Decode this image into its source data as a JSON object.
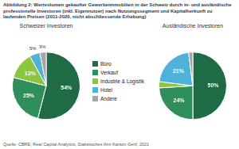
{
  "title": "Abbildung 2: Wertvolumen gekaufter Gewerbeimmobilien in der Schweiz durch in- und ausländische professionelle Investoren (inkl. Eigennutzer) nach Nutzungssegment und Kapitalherkunft zu laufenden Preisen (2011-2020, nicht abschliessende Erhebung)",
  "source": "Quelle: CBRE, Real Capital Analytics, Statistisches Amt Kanton Genf, 2021",
  "chart_data": [
    {
      "type": "pie",
      "title": "Schweizer Investoren",
      "categories": [
        "Büro",
        "Verkauf",
        "Industrie & Logistik",
        "Hotel",
        "Andere"
      ],
      "values": [
        54,
        25,
        13,
        5,
        3
      ],
      "value_labels": [
        "54%",
        "25%",
        "13%",
        "5%",
        "3%"
      ],
      "colors": [
        "#1f6b46",
        "#2f8f5b",
        "#8cc63e",
        "#4fb3d9",
        "#a6a6a6"
      ],
      "data_labels": true,
      "legend": "right"
    },
    {
      "type": "pie",
      "title": "Ausländische Investoren",
      "categories": [
        "Büro",
        "Verkauf",
        "Industrie & Logistik",
        "Hotel",
        "Andere"
      ],
      "values": [
        50,
        24,
        3,
        21,
        2
      ],
      "value_labels": [
        "50%",
        "24%",
        null,
        "21%",
        null
      ],
      "colors": [
        "#1f6b46",
        "#2f8f5b",
        "#8cc63e",
        "#4fb3d9",
        "#a6a6a6"
      ],
      "data_labels": true
    }
  ]
}
